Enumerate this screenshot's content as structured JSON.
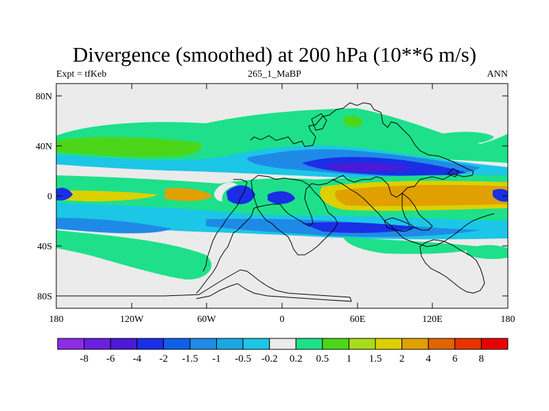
{
  "title": "Divergence (smoothed) at 200 hPa (10**6 m/s)",
  "left_subtitle": "Expt = tfKeb",
  "center_subtitle": "265_1_MaBP",
  "right_subtitle": "ANN",
  "map": {
    "lat_ticks": [
      "80N",
      "40N",
      "0",
      "40S",
      "80S"
    ],
    "lon_ticks": [
      "180",
      "120W",
      "60W",
      "0",
      "60E",
      "120E",
      "180"
    ]
  },
  "colorbar": {
    "labels": [
      "-8",
      "-6",
      "-4",
      "-2",
      "-1.5",
      "-1",
      "-0.5",
      "-0.2",
      "0.2",
      "0.5",
      "1",
      "1.5",
      "2",
      "4",
      "6",
      "8"
    ],
    "colors": [
      "#8c2ce6",
      "#6a1fe0",
      "#4b1ad8",
      "#1a2ee6",
      "#0f5fe8",
      "#1f8ae6",
      "#1aa8e0",
      "#1cc6e6",
      "#ebebeb",
      "#1ee08a",
      "#4cd61a",
      "#a8dc1a",
      "#dcd000",
      "#e0a000",
      "#e06400",
      "#e83200",
      "#e80000"
    ]
  }
}
